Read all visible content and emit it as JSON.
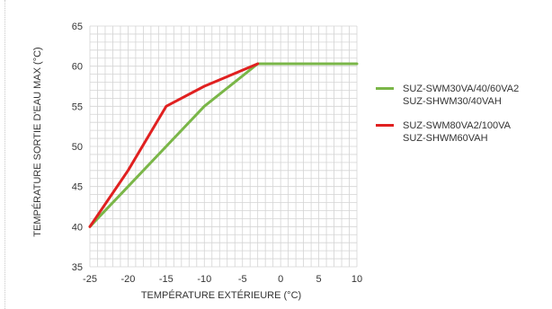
{
  "chart_data": {
    "type": "line",
    "xlabel": "TEMPÉRATURE EXTÉRIEURE (°C)",
    "ylabel": "TEMPÉRATURE SORTIE D'EAU MAX (°C)",
    "xlim": [
      -25,
      10
    ],
    "ylim": [
      35,
      65
    ],
    "xticks": [
      "-25",
      "-20",
      "-15",
      "-10",
      "-5",
      "0",
      "5",
      "10"
    ],
    "yticks": [
      "35",
      "40",
      "45",
      "50",
      "55",
      "60",
      "65"
    ],
    "grid": true,
    "series": [
      {
        "name": "SUZ-SWM30VA/40/60VA2 SUZ-SHWM30/40VAH",
        "label_lines": [
          "SUZ-SWM30VA/40/60VA2",
          "SUZ-SHWM30/40VAH"
        ],
        "color": "#7ab648",
        "points": [
          [
            -25,
            40
          ],
          [
            -20,
            45
          ],
          [
            -15,
            50
          ],
          [
            -10,
            55
          ],
          [
            -3,
            60.3
          ],
          [
            10,
            60.3
          ]
        ]
      },
      {
        "name": "SUZ-SWM80VA2/100VA SUZ-SHWM60VAH",
        "label_lines": [
          "SUZ-SWM80VA2/100VA",
          "SUZ-SHWM60VAH"
        ],
        "color": "#e02020",
        "points": [
          [
            -25,
            40
          ],
          [
            -20,
            47
          ],
          [
            -15,
            55
          ],
          [
            -10,
            57.5
          ],
          [
            -3,
            60.3
          ]
        ]
      }
    ],
    "legend_position": "right"
  }
}
